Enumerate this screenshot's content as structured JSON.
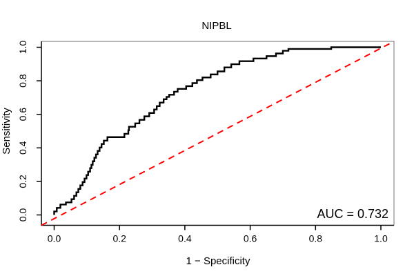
{
  "chart_data": {
    "type": "line",
    "title": "NIPBL",
    "xlabel": "1 − Specificity",
    "ylabel": "Sensitivity",
    "xlim": [
      0,
      1
    ],
    "ylim": [
      0,
      1
    ],
    "grid": false,
    "x_ticks": [
      "0.0",
      "0.2",
      "0.4",
      "0.6",
      "0.8",
      "1.0"
    ],
    "y_ticks": [
      "0.0",
      "0.2",
      "0.4",
      "0.6",
      "0.8",
      "1.0"
    ],
    "x_tick_values": [
      0,
      0.2,
      0.4,
      0.6,
      0.8,
      1.0
    ],
    "y_tick_values": [
      0,
      0.2,
      0.4,
      0.6,
      0.8,
      1.0
    ],
    "annotation": "AUC = 0.732",
    "auc": 0.732,
    "series": [
      {
        "name": "roc-step-curve",
        "draw": "step-vertices",
        "color": "#000000",
        "width": 2.4,
        "dash": null,
        "points": [
          [
            0.0,
            0.0
          ],
          [
            0.0,
            0.021
          ],
          [
            0.008,
            0.021
          ],
          [
            0.008,
            0.042
          ],
          [
            0.019,
            0.042
          ],
          [
            0.019,
            0.062
          ],
          [
            0.036,
            0.062
          ],
          [
            0.036,
            0.075
          ],
          [
            0.053,
            0.075
          ],
          [
            0.053,
            0.094
          ],
          [
            0.061,
            0.094
          ],
          [
            0.061,
            0.114
          ],
          [
            0.068,
            0.114
          ],
          [
            0.068,
            0.135
          ],
          [
            0.074,
            0.135
          ],
          [
            0.074,
            0.155
          ],
          [
            0.08,
            0.155
          ],
          [
            0.08,
            0.176
          ],
          [
            0.087,
            0.176
          ],
          [
            0.087,
            0.196
          ],
          [
            0.093,
            0.196
          ],
          [
            0.093,
            0.217
          ],
          [
            0.099,
            0.217
          ],
          [
            0.099,
            0.238
          ],
          [
            0.104,
            0.238
          ],
          [
            0.104,
            0.258
          ],
          [
            0.11,
            0.258
          ],
          [
            0.11,
            0.279
          ],
          [
            0.114,
            0.279
          ],
          [
            0.114,
            0.299
          ],
          [
            0.118,
            0.299
          ],
          [
            0.118,
            0.32
          ],
          [
            0.123,
            0.32
          ],
          [
            0.123,
            0.341
          ],
          [
            0.128,
            0.341
          ],
          [
            0.128,
            0.361
          ],
          [
            0.133,
            0.361
          ],
          [
            0.133,
            0.382
          ],
          [
            0.139,
            0.382
          ],
          [
            0.139,
            0.402
          ],
          [
            0.145,
            0.402
          ],
          [
            0.145,
            0.423
          ],
          [
            0.152,
            0.423
          ],
          [
            0.152,
            0.443
          ],
          [
            0.163,
            0.443
          ],
          [
            0.163,
            0.464
          ],
          [
            0.215,
            0.464
          ],
          [
            0.215,
            0.484
          ],
          [
            0.227,
            0.484
          ],
          [
            0.227,
            0.505
          ],
          [
            0.229,
            0.505
          ],
          [
            0.229,
            0.526
          ],
          [
            0.248,
            0.526
          ],
          [
            0.248,
            0.546
          ],
          [
            0.261,
            0.546
          ],
          [
            0.261,
            0.567
          ],
          [
            0.276,
            0.567
          ],
          [
            0.276,
            0.588
          ],
          [
            0.291,
            0.588
          ],
          [
            0.291,
            0.608
          ],
          [
            0.306,
            0.608
          ],
          [
            0.306,
            0.629
          ],
          [
            0.314,
            0.629
          ],
          [
            0.314,
            0.649
          ],
          [
            0.323,
            0.649
          ],
          [
            0.323,
            0.67
          ],
          [
            0.335,
            0.67
          ],
          [
            0.335,
            0.69
          ],
          [
            0.344,
            0.69
          ],
          [
            0.344,
            0.704
          ],
          [
            0.352,
            0.704
          ],
          [
            0.352,
            0.717
          ],
          [
            0.367,
            0.717
          ],
          [
            0.367,
            0.735
          ],
          [
            0.378,
            0.735
          ],
          [
            0.378,
            0.752
          ],
          [
            0.404,
            0.752
          ],
          [
            0.404,
            0.768
          ],
          [
            0.423,
            0.768
          ],
          [
            0.423,
            0.786
          ],
          [
            0.437,
            0.786
          ],
          [
            0.437,
            0.804
          ],
          [
            0.454,
            0.804
          ],
          [
            0.454,
            0.82
          ],
          [
            0.479,
            0.82
          ],
          [
            0.479,
            0.838
          ],
          [
            0.5,
            0.838
          ],
          [
            0.5,
            0.856
          ],
          [
            0.521,
            0.856
          ],
          [
            0.521,
            0.88
          ],
          [
            0.542,
            0.88
          ],
          [
            0.542,
            0.899
          ],
          [
            0.567,
            0.899
          ],
          [
            0.567,
            0.917
          ],
          [
            0.61,
            0.917
          ],
          [
            0.61,
            0.933
          ],
          [
            0.65,
            0.933
          ],
          [
            0.65,
            0.947
          ],
          [
            0.679,
            0.947
          ],
          [
            0.679,
            0.963
          ],
          [
            0.7,
            0.963
          ],
          [
            0.7,
            0.979
          ],
          [
            0.717,
            0.979
          ],
          [
            0.717,
            0.99
          ],
          [
            0.848,
            0.99
          ],
          [
            0.848,
            1.0
          ],
          [
            1.0,
            1.0
          ]
        ]
      },
      {
        "name": "chance-diagonal",
        "draw": "full-diagonal",
        "color": "#ff0000",
        "width": 2,
        "dash": [
          9,
          7
        ],
        "points": [
          [
            0,
            0
          ],
          [
            1,
            1
          ]
        ]
      }
    ]
  }
}
